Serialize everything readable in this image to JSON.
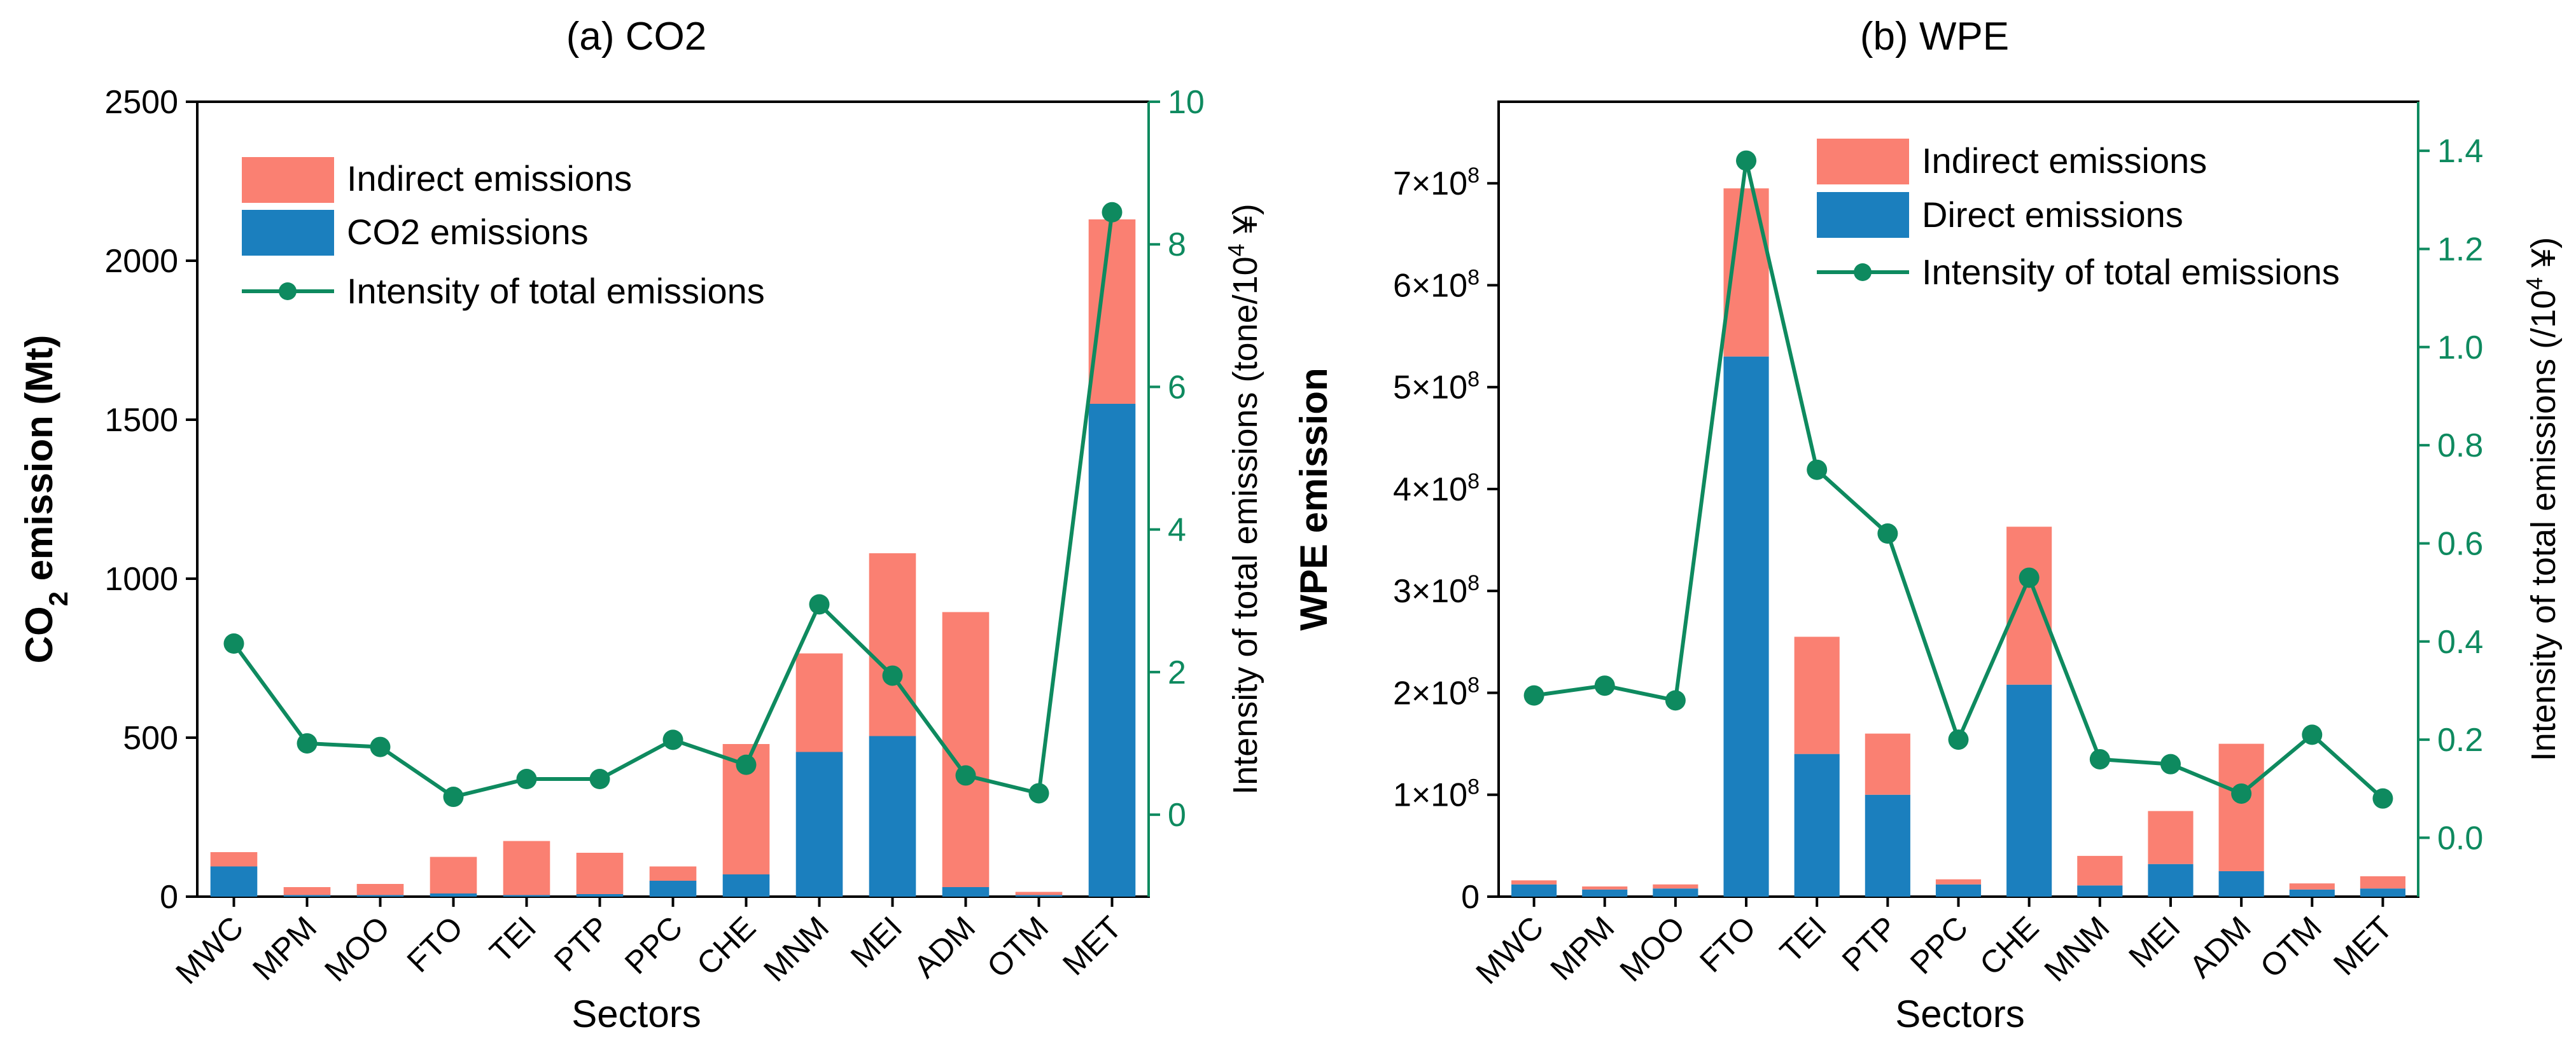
{
  "colors": {
    "indirect": "#FA8072",
    "direct": "#1B7FBE",
    "intensity": "#0E8A5F",
    "axis": "#000000"
  },
  "chart_data": [
    {
      "type": "bar",
      "stacked": true,
      "title": "(a) CO2",
      "xlabel": "Sectors",
      "ylabel_main": "CO",
      "ylabel_sub": "2",
      "ylabel_rest": " emission (Mt)",
      "y2label_main": "Intensity of total emissions (tone/10",
      "y2label_sup": "4",
      "y2label_rest": " ¥)",
      "categories": [
        "MWC",
        "MPM",
        "MOO",
        "FTO",
        "TEI",
        "PTP",
        "PPC",
        "CHE",
        "MNM",
        "MEI",
        "ADM",
        "OTM",
        "MET"
      ],
      "ylim": [
        0,
        2500
      ],
      "yticks": [
        "0",
        "500",
        "1000",
        "1500",
        "2000",
        "2500"
      ],
      "y2lim": [
        -1.15,
        10
      ],
      "y2ticks": [
        "0",
        "2",
        "4",
        "6",
        "8",
        "10"
      ],
      "legend": {
        "position": "top-left",
        "items": [
          "Indirect emissions",
          "CO2 emissions",
          "Intensity of total emissions"
        ]
      },
      "series": [
        {
          "name": "CO2 emissions",
          "kind": "bar",
          "values": [
            95,
            5,
            5,
            10,
            5,
            8,
            50,
            70,
            455,
            505,
            30,
            5,
            1550
          ]
        },
        {
          "name": "Indirect emissions",
          "kind": "bar",
          "values": [
            45,
            25,
            35,
            115,
            170,
            130,
            45,
            410,
            310,
            575,
            865,
            10,
            580
          ]
        },
        {
          "name": "Intensity of total emissions",
          "kind": "line",
          "axis": "right",
          "values": [
            2.4,
            1.0,
            0.95,
            0.25,
            0.5,
            0.5,
            1.05,
            0.7,
            2.95,
            1.95,
            0.55,
            0.3,
            8.45
          ]
        }
      ]
    },
    {
      "type": "bar",
      "stacked": true,
      "title": "(b) WPE",
      "xlabel": "Sectors",
      "ylabel": "WPE emission",
      "y2label_main": "Intensity of total emissions (/10",
      "y2label_sup": "4",
      "y2label_rest": " ¥)",
      "categories": [
        "MWC",
        "MPM",
        "MOO",
        "FTO",
        "TEI",
        "PTP",
        "PPC",
        "CHE",
        "MNM",
        "MEI",
        "ADM",
        "OTM",
        "MET"
      ],
      "ylim": [
        0,
        780000000
      ],
      "yticks_base": [
        "0",
        "1×10",
        "2×10",
        "3×10",
        "4×10",
        "5×10",
        "6×10",
        "7×10"
      ],
      "ytick_exp": "8",
      "y2lim": [
        -0.12,
        1.5
      ],
      "y2ticks": [
        "0.0",
        "0.2",
        "0.4",
        "0.6",
        "0.8",
        "1.0",
        "1.2",
        "1.4"
      ],
      "legend": {
        "position": "top-center",
        "items": [
          "Indirect emissions",
          "Direct emissions",
          "Intensity of total emissions"
        ]
      },
      "series": [
        {
          "name": "Direct emissions",
          "kind": "bar",
          "values": [
            12000000,
            7000000,
            8000000,
            530000000,
            140000000,
            100000000,
            12000000,
            208000000,
            11000000,
            32000000,
            25000000,
            7000000,
            8000000
          ]
        },
        {
          "name": "Indirect emissions",
          "kind": "bar",
          "values": [
            4000000,
            3000000,
            4000000,
            165000000,
            115000000,
            60000000,
            5000000,
            155000000,
            29000000,
            52000000,
            125000000,
            6000000,
            12000000
          ]
        },
        {
          "name": "Intensity of total emissions",
          "kind": "line",
          "axis": "right",
          "values": [
            0.29,
            0.31,
            0.28,
            1.38,
            0.75,
            0.62,
            0.2,
            0.53,
            0.16,
            0.15,
            0.09,
            0.21,
            0.08
          ]
        }
      ]
    }
  ]
}
